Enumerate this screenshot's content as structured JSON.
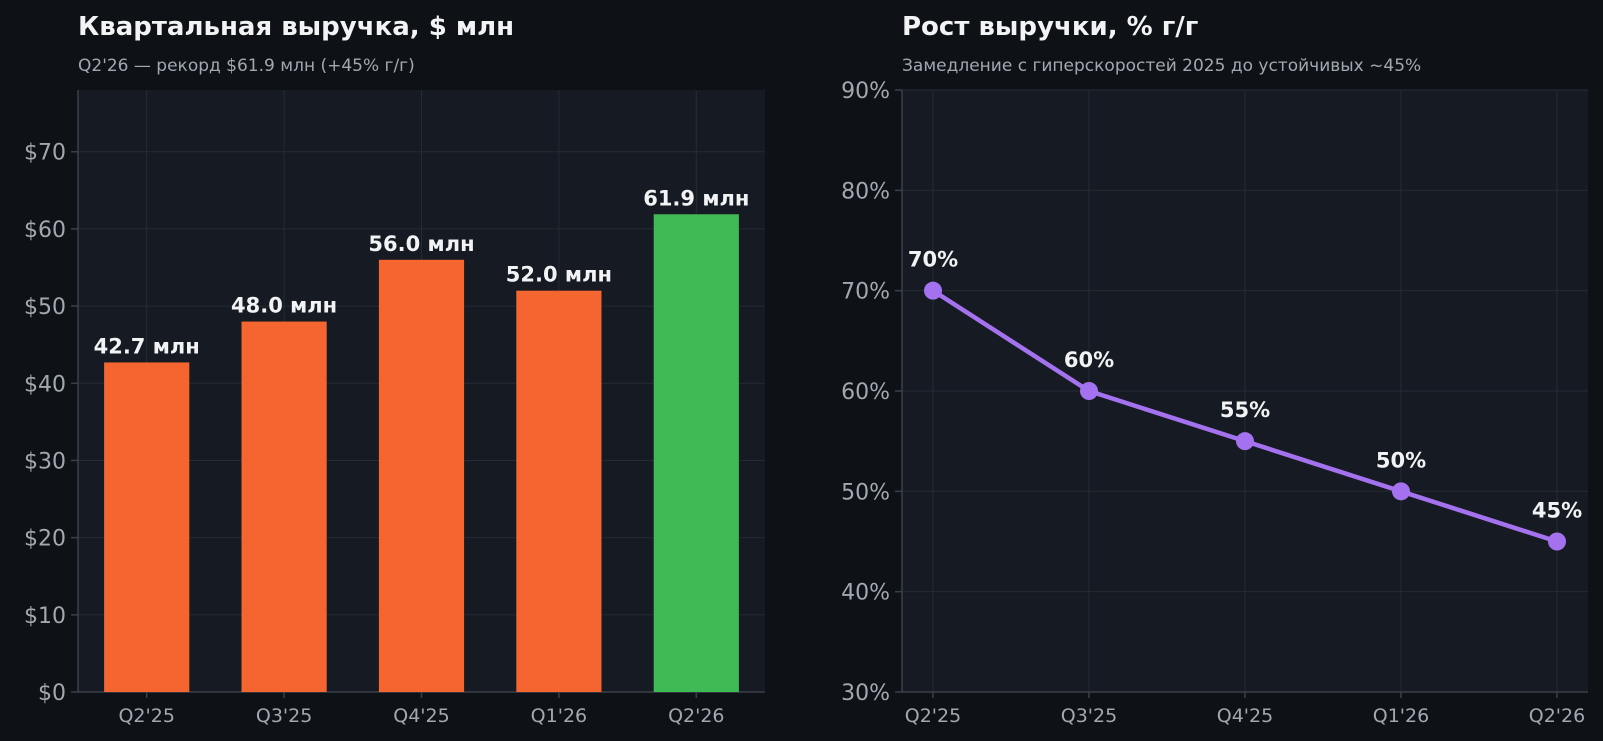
{
  "colors": {
    "page_bg": "#0e1217",
    "plot_bg": "#161a22",
    "grid": "#252b35",
    "axis": "#3a404b",
    "title": "#f2f3f5",
    "subtitle": "#a3a8b0",
    "tick": "#a3a8b0",
    "label": "#f2f3f5",
    "bar": "#f46530",
    "bar_highlight": "#3fba54",
    "line": "#a572ef"
  },
  "chart_data": [
    {
      "type": "bar",
      "title": "Квартальная выручка, $ млн",
      "subtitle": "Q2'26 — рекорд $61.9 млн (+45% г/г)",
      "categories": [
        "Q2'25",
        "Q3'25",
        "Q4'25",
        "Q1'26",
        "Q2'26"
      ],
      "values": [
        42.7,
        48.0,
        56.0,
        52.0,
        61.9
      ],
      "data_labels": [
        "42.7 млн",
        "48.0 млн",
        "56.0 млн",
        "52.0 млн",
        "61.9 млн"
      ],
      "highlight_index": 4,
      "ylim": [
        0,
        78
      ],
      "yticks": [
        0,
        10,
        20,
        30,
        40,
        50,
        60,
        70
      ],
      "ytick_labels": [
        "$0",
        "$10",
        "$20",
        "$30",
        "$40",
        "$50",
        "$60",
        "$70"
      ],
      "grid": true
    },
    {
      "type": "line",
      "title": "Рост выручки, % г/г",
      "subtitle": "Замедление с гиперскоростей 2025 до устойчивых ~45%",
      "categories": [
        "Q2'25",
        "Q3'25",
        "Q4'25",
        "Q1'26",
        "Q2'26"
      ],
      "values": [
        70,
        60,
        55,
        50,
        45
      ],
      "data_labels": [
        "70%",
        "60%",
        "55%",
        "50%",
        "45%"
      ],
      "ylim": [
        30,
        90
      ],
      "yticks": [
        30,
        40,
        50,
        60,
        70,
        80,
        90
      ],
      "ytick_labels": [
        "30%",
        "40%",
        "50%",
        "60%",
        "70%",
        "80%",
        "90%"
      ],
      "grid": true
    }
  ]
}
